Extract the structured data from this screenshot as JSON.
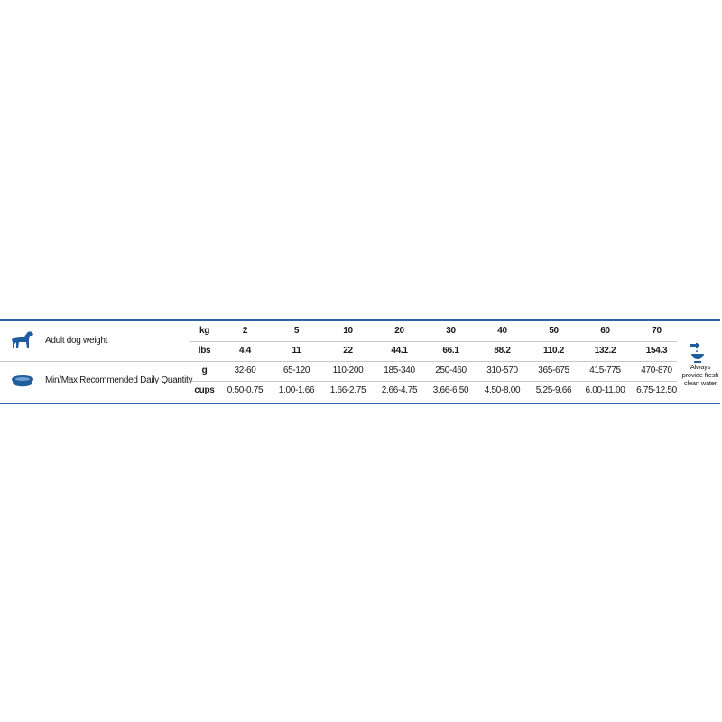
{
  "weight": {
    "label": "Adult dog weight",
    "icon": "dog-icon",
    "kg_unit": "kg",
    "lbs_unit": "lbs",
    "kg": [
      "2",
      "5",
      "10",
      "20",
      "30",
      "40",
      "50",
      "60",
      "70"
    ],
    "lbs": [
      "4.4",
      "11",
      "22",
      "44.1",
      "66.1",
      "88.2",
      "110.2",
      "132.2",
      "154.3"
    ]
  },
  "quantity": {
    "label": "Min/Max Recommended Daily Quantity",
    "icon": "food-bowl-icon",
    "g_unit": "g",
    "cups_unit": "cups",
    "g": [
      "32-60",
      "65-120",
      "110-200",
      "185-340",
      "250-460",
      "310-570",
      "365-675",
      "415-775",
      "470-870"
    ],
    "cups": [
      "0.50-0.75",
      "1.00-1.66",
      "1.66-2.75",
      "2.66-4.75",
      "3.66-6.50",
      "4.50-8.00",
      "5.25-9.66",
      "6.00-11.00",
      "6.75-12.50"
    ]
  },
  "water": {
    "icon": "water-tap-icon",
    "line1": "Always",
    "line2": "provide fresh",
    "line3": "clean water"
  },
  "colors": {
    "accent": "#2a64a4",
    "icon": "#1f5d9e"
  }
}
